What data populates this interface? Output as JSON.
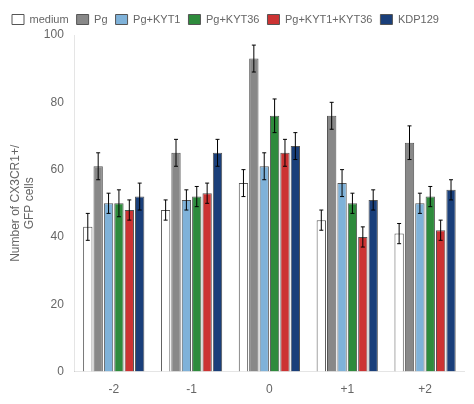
{
  "chart_data": {
    "type": "bar",
    "categories": [
      "-2",
      "-1",
      "0",
      "+1",
      "+2"
    ],
    "series": [
      {
        "name": "medium",
        "color": "#ffffff",
        "values": [
          43,
          48,
          56,
          45,
          41
        ],
        "errors": [
          4,
          3,
          4,
          3,
          3
        ]
      },
      {
        "name": "Pg",
        "color": "#888888",
        "values": [
          61,
          65,
          93,
          76,
          68
        ],
        "errors": [
          4,
          4,
          4,
          4,
          5
        ]
      },
      {
        "name": "Pg+KYT1",
        "color": "#7fb2d9",
        "values": [
          50,
          51,
          61,
          56,
          50
        ],
        "errors": [
          3,
          3,
          4,
          4,
          3
        ]
      },
      {
        "name": "Pg+KYT36",
        "color": "#2e8b3c",
        "values": [
          50,
          52,
          76,
          50,
          52
        ],
        "errors": [
          4,
          3,
          5,
          3,
          3
        ]
      },
      {
        "name": "Pg+KYT1+KYT36",
        "color": "#cc3333",
        "values": [
          48,
          53,
          65,
          40,
          42
        ],
        "errors": [
          3,
          3,
          4,
          3,
          3
        ]
      },
      {
        "name": "KDP129",
        "color": "#1a3f7a",
        "values": [
          52,
          65,
          67,
          51,
          54
        ],
        "errors": [
          4,
          4,
          4,
          3,
          3
        ]
      }
    ],
    "ylabel": "Number of CX3CR1+/\nGFP cells",
    "ylim": [
      0,
      100
    ],
    "yticks": [
      0,
      20,
      40,
      60,
      80,
      100
    ],
    "grid": false,
    "legend": "top"
  }
}
